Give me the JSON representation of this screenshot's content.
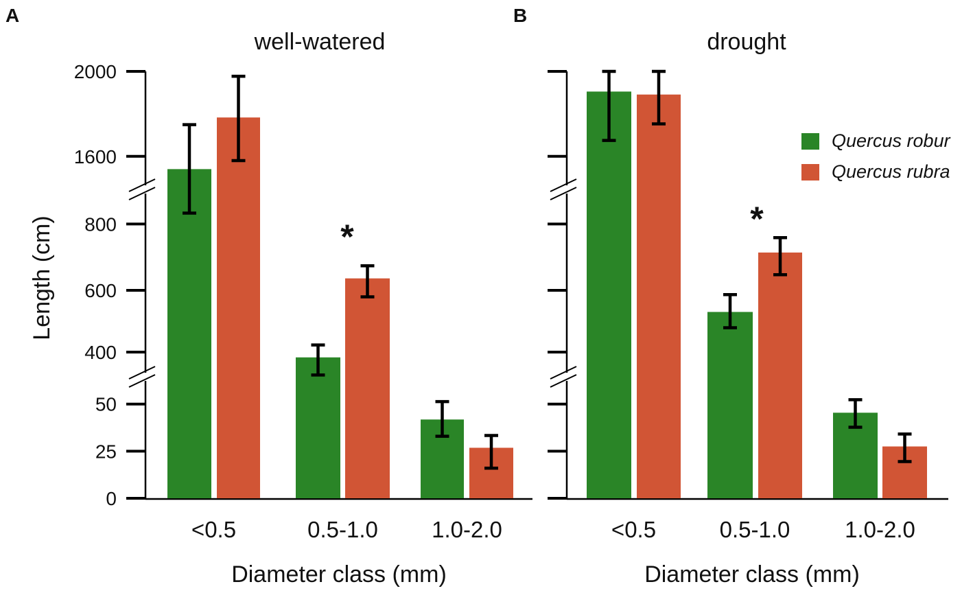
{
  "chart_data": [
    {
      "type": "bar",
      "panel_label": "A",
      "title": "well-watered",
      "xlabel": "Diameter class (mm)",
      "ylabel": "Length (cm)",
      "categories": [
        "<0.5",
        "0.5-1.0",
        "1.0-2.0"
      ],
      "yticks": [
        0,
        25,
        50,
        400,
        600,
        800,
        1600,
        2000
      ],
      "ytick_labels": [
        "0",
        "25",
        "50",
        "400",
        "600",
        "800",
        "1600",
        "2000"
      ],
      "axis_breaks": [
        [
          60,
          340
        ],
        [
          880,
          1480
        ]
      ],
      "ylim": [
        0,
        2000
      ],
      "series": [
        {
          "name": "Quercus robur",
          "color": "#2a8527",
          "values": [
            1540,
            386,
            41.8
          ],
          "err_low": [
            834,
            334,
            32.9
          ],
          "err_high": [
            1749,
            423,
            51.3
          ]
        },
        {
          "name": "Quercus rubra",
          "color": "#d15535",
          "values": [
            1783,
            636,
            26.8
          ],
          "err_low": [
            1580,
            579,
            16
          ],
          "err_high": [
            1977,
            674,
            33.3
          ]
        }
      ],
      "annotations": [
        {
          "text": "*",
          "category": "0.5-1.0"
        }
      ]
    },
    {
      "type": "bar",
      "panel_label": "B",
      "title": "drought",
      "xlabel": "Diameter class (mm)",
      "ylabel": "",
      "categories": [
        "<0.5",
        "0.5-1.0",
        "1.0-2.0"
      ],
      "yticks": [
        0,
        25,
        50,
        400,
        600,
        800,
        1600,
        2000
      ],
      "ytick_labels": [],
      "axis_breaks": [
        [
          60,
          340
        ],
        [
          880,
          1480
        ]
      ],
      "ylim": [
        0,
        2000
      ],
      "series": [
        {
          "name": "Quercus robur",
          "color": "#2a8527",
          "values": [
            1905,
            530,
            45.4
          ],
          "err_low": [
            1675,
            479,
            37.7
          ],
          "err_high": [
            2000,
            586,
            52.3
          ]
        },
        {
          "name": "Quercus rubra",
          "color": "#d15535",
          "values": [
            1891,
            714,
            27.5
          ],
          "err_low": [
            1753,
            647,
            19.5
          ],
          "err_high": [
            2000,
            759,
            34.1
          ]
        }
      ],
      "annotations": [
        {
          "text": "*",
          "category": "0.5-1.0"
        }
      ],
      "legend": {
        "placement": "top-right",
        "entries": [
          "Quercus robur",
          "Quercus rubra"
        ]
      }
    }
  ]
}
